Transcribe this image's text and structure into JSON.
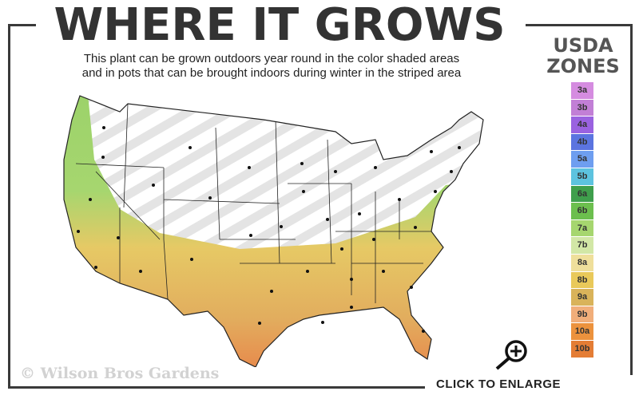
{
  "title": "WHERE IT GROWS",
  "subtitle": [
    "This plant can be grown outdoors year round in the color shaded areas",
    "and in pots that can be brought indoors during winter in the striped area"
  ],
  "legend": {
    "title": [
      "USDA",
      "ZONES"
    ],
    "zones": [
      {
        "label": "3a",
        "color": "#d58ce0"
      },
      {
        "label": "3b",
        "color": "#c27fd6"
      },
      {
        "label": "4a",
        "color": "#9a62e0"
      },
      {
        "label": "4b",
        "color": "#5b74e0"
      },
      {
        "label": "5a",
        "color": "#6e9ef0"
      },
      {
        "label": "5b",
        "color": "#5dc3df"
      },
      {
        "label": "6a",
        "color": "#3f9f4c"
      },
      {
        "label": "6b",
        "color": "#6cbf4e"
      },
      {
        "label": "7a",
        "color": "#a6d66f"
      },
      {
        "label": "7b",
        "color": "#d2e7a6"
      },
      {
        "label": "8a",
        "color": "#efdf9b"
      },
      {
        "label": "8b",
        "color": "#e9c95a"
      },
      {
        "label": "9a",
        "color": "#d9b35a"
      },
      {
        "label": "9b",
        "color": "#f1ae7a"
      },
      {
        "label": "10a",
        "color": "#ec923d"
      },
      {
        "label": "10b",
        "color": "#e47d35"
      }
    ]
  },
  "copyright": "© Wilson Bros Gardens",
  "enlarge_label": "CLICK TO ENLARGE",
  "icons": {
    "enlarge": "zoom-in-magnifier-icon"
  }
}
